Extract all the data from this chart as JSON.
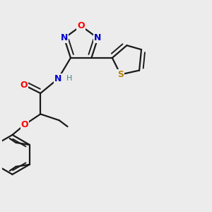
{
  "bg_color": "#ececec",
  "bond_color": "#1a1a1a",
  "bond_width": 1.6,
  "dbo": 0.018,
  "colors": {
    "O": "#ff0000",
    "N": "#0000cc",
    "S": "#b8860b",
    "H": "#448888",
    "C": "#1a1a1a"
  }
}
